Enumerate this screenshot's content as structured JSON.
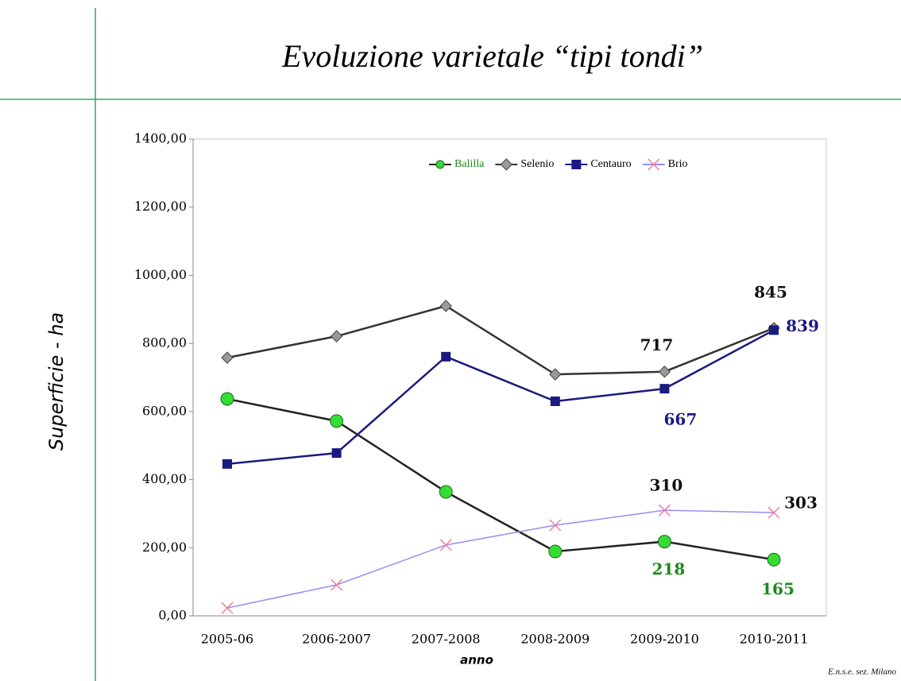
{
  "chart_data": {
    "type": "line",
    "title": "Evoluzione varietale “tipi tondi”",
    "y_label": "Superficie - ha",
    "x_label": "anno",
    "footer": "E.n.s.e. sez. Milano",
    "categories": [
      "2005-06",
      "2006-2007",
      "2007-2008",
      "2008-2009",
      "2009-2010",
      "2010-2011"
    ],
    "ylim": [
      0,
      1400
    ],
    "yticks": [
      {
        "value": 0,
        "label": "0,00"
      },
      {
        "value": 200,
        "label": "200,00"
      },
      {
        "value": 400,
        "label": "400,00"
      },
      {
        "value": 600,
        "label": "600,00"
      },
      {
        "value": 800,
        "label": "800,00"
      },
      {
        "value": 1000,
        "label": "1000,00"
      },
      {
        "value": 1200,
        "label": "1200,00"
      },
      {
        "value": 1400,
        "label": "1400,00"
      }
    ],
    "legend": "top",
    "series": [
      {
        "name": "Balilla",
        "color": "#222222",
        "marker": "circle",
        "marker_color": "#33dd33",
        "label_color": "#1a8a1a",
        "values": [
          637,
          572,
          364,
          189,
          218,
          165
        ],
        "value_labels": [
          null,
          null,
          null,
          null,
          "218",
          "165"
        ]
      },
      {
        "name": "Selenio",
        "color": "#333333",
        "marker": "diamond",
        "marker_color": "#999999",
        "label_color": "#111111",
        "values": [
          758,
          821,
          910,
          709,
          717,
          845
        ],
        "value_labels": [
          null,
          null,
          null,
          null,
          "717",
          "845"
        ]
      },
      {
        "name": "Centauro",
        "color": "#1a1a80",
        "marker": "square",
        "marker_color": "#1a1a80",
        "label_color": "#1a1a80",
        "values": [
          446,
          478,
          761,
          630,
          667,
          839
        ],
        "value_labels": [
          null,
          null,
          null,
          null,
          "667",
          "839"
        ]
      },
      {
        "name": "Brio",
        "color": "#9a8cf0",
        "marker": "x",
        "marker_color": "#f07ca0",
        "label_color": "#111111",
        "values": [
          23,
          91,
          208,
          266,
          310,
          303
        ],
        "value_labels": [
          null,
          null,
          null,
          null,
          "310",
          "303"
        ]
      }
    ]
  }
}
